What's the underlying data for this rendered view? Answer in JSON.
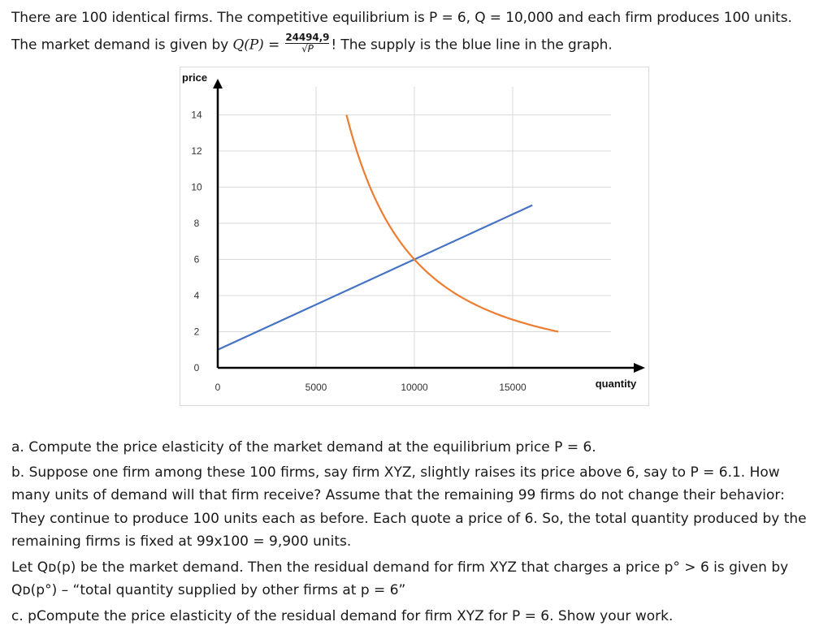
{
  "intro": {
    "line1": "There are 100 identical firms. The competitive equilibrium is P = 6, Q = 10,000 and each firm produces 100 units.",
    "line2_prefix": "The market demand is given by ",
    "line2_formula": "Q(P) =",
    "line2_numerator": "24494,9",
    "line2_denominator": "√P",
    "line2_suffix": "! The supply is the blue line in the graph."
  },
  "chart_data": {
    "type": "line",
    "ylabel": "price",
    "xlabel": "quantity",
    "x_ticks": [
      "0",
      "5000",
      "10000",
      "15000"
    ],
    "y_ticks": [
      "0",
      "2",
      "4",
      "6",
      "8",
      "10",
      "12",
      "14"
    ],
    "xlim": [
      0,
      20000
    ],
    "ylim": [
      0,
      16
    ],
    "grid": true,
    "series": [
      {
        "color": "#4472c4",
        "x": [
          0,
          16000
        ],
        "y": [
          1,
          9
        ]
      },
      {
        "color": "#ed7d31",
        "function": "24494.9/sqrt(P)",
        "x": [
          6547,
          17320
        ],
        "y": [
          14,
          2
        ]
      }
    ]
  },
  "questions": {
    "a": "a. Compute the price elasticity of the market demand at the equilibrium price P = 6.",
    "b1": "b. Suppose one firm among these 100 firms, say firm XYZ, slightly raises its price above 6, say to P = 6.1. How",
    "b2": "many units of demand will that firm receive? Assume that the remaining 99 firms do not change their behavior:",
    "b3": "They continue to produce 100 units each as before. Each quote a price of 6. So, the total quantity produced by the",
    "b4": "remaining firms is fixed at 99x100 = 9,900 units.",
    "let1": "Let Qᴅ(p) be the market demand. Then the residual demand for firm XYZ that charges a price p° > 6 is given by",
    "let2": "Qᴅ(p°) – “total quantity  supplied by other firms at p = 6”",
    "c": "c. pCompute the price elasticity of the residual demand for firm XYZ for P = 6. Show your work."
  }
}
